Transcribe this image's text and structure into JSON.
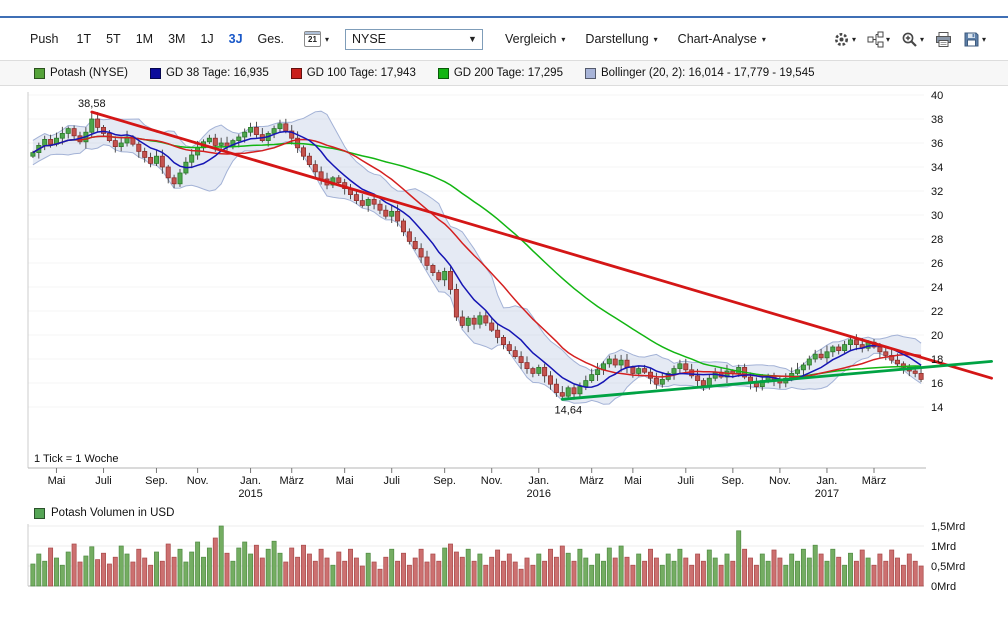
{
  "toolbar": {
    "push_label": "Push",
    "range_buttons": [
      {
        "label": "1T",
        "selected": false
      },
      {
        "label": "5T",
        "selected": false
      },
      {
        "label": "1M",
        "selected": false
      },
      {
        "label": "3M",
        "selected": false
      },
      {
        "label": "1J",
        "selected": false
      },
      {
        "label": "3J",
        "selected": true
      },
      {
        "label": "Ges.",
        "selected": false
      }
    ],
    "calendar_day": "21",
    "exchange": {
      "value": "NYSE"
    },
    "menus": [
      {
        "label": "Vergleich"
      },
      {
        "label": "Darstellung"
      },
      {
        "label": "Chart-Analyse"
      }
    ],
    "icons": [
      {
        "name": "settings-gear-icon",
        "dropdown": true
      },
      {
        "name": "indicator-tools-icon",
        "dropdown": true
      },
      {
        "name": "zoom-in-icon",
        "dropdown": true
      },
      {
        "name": "print-icon",
        "dropdown": false
      },
      {
        "name": "save-icon",
        "dropdown": true
      }
    ],
    "accent_color": "#1857c8"
  },
  "legend": {
    "items": [
      {
        "label": "Potash (NYSE)",
        "color": "#55a33a"
      },
      {
        "label": "GD 38 Tage: 16,935",
        "color": "#0b0b9b"
      },
      {
        "label": "GD 100 Tage: 17,943",
        "color": "#c8201c"
      },
      {
        "label": "GD 200 Tage: 17,295",
        "color": "#12b512"
      },
      {
        "label": "Bollinger (20, 2): 16,014 - 17,779 - 19,545",
        "color": "#a8b4d8"
      }
    ]
  },
  "chart_data": {
    "type": "candlestick",
    "instrument": "Potash (NYSE)",
    "tick_note": "1 Tick = 1 Woche",
    "price_axis": {
      "min": 14,
      "max": 40,
      "step": 2
    },
    "x_ticks": [
      {
        "label": "Mai",
        "week": 4
      },
      {
        "label": "Juli",
        "week": 12
      },
      {
        "label": "Sep.",
        "week": 21
      },
      {
        "label": "Nov.",
        "week": 28
      },
      {
        "label": "Jan.",
        "week": 37,
        "year": "2015"
      },
      {
        "label": "März",
        "week": 44
      },
      {
        "label": "Mai",
        "week": 53
      },
      {
        "label": "Juli",
        "week": 61
      },
      {
        "label": "Sep.",
        "week": 70
      },
      {
        "label": "Nov.",
        "week": 78
      },
      {
        "label": "Jan.",
        "week": 86,
        "year": "2016"
      },
      {
        "label": "März",
        "week": 95
      },
      {
        "label": "Mai",
        "week": 102
      },
      {
        "label": "Juli",
        "week": 111
      },
      {
        "label": "Sep.",
        "week": 119
      },
      {
        "label": "Nov.",
        "week": 127
      },
      {
        "label": "Jan.",
        "week": 135,
        "year": "2017"
      },
      {
        "label": "März",
        "week": 143
      }
    ],
    "closes": [
      35.2,
      35.8,
      36.3,
      35.9,
      36.4,
      36.8,
      37.2,
      36.6,
      36.1,
      36.9,
      38.0,
      37.3,
      36.8,
      36.2,
      35.7,
      36.0,
      36.5,
      35.9,
      35.3,
      34.8,
      34.3,
      34.9,
      34.0,
      33.1,
      32.6,
      33.5,
      34.4,
      35.0,
      35.6,
      36.1,
      36.4,
      35.8,
      36.0,
      35.7,
      36.2,
      36.5,
      36.9,
      37.3,
      36.7,
      36.2,
      36.8,
      37.2,
      37.6,
      37.0,
      36.4,
      35.6,
      34.9,
      34.2,
      33.6,
      33.0,
      32.5,
      33.1,
      32.7,
      32.2,
      31.7,
      31.2,
      30.8,
      31.3,
      30.9,
      30.4,
      29.9,
      30.3,
      29.5,
      28.6,
      27.8,
      27.2,
      26.5,
      25.8,
      25.2,
      24.6,
      25.3,
      23.8,
      21.5,
      20.8,
      21.4,
      20.9,
      21.6,
      21.0,
      20.4,
      19.8,
      19.2,
      18.7,
      18.2,
      17.7,
      17.2,
      16.8,
      17.3,
      16.6,
      15.9,
      15.2,
      14.9,
      15.6,
      15.1,
      15.7,
      16.2,
      16.7,
      17.1,
      17.6,
      18.0,
      17.5,
      17.9,
      17.3,
      16.8,
      17.2,
      16.9,
      16.4,
      15.9,
      16.3,
      16.8,
      17.2,
      17.6,
      17.1,
      16.6,
      16.2,
      15.8,
      16.4,
      16.9,
      16.5,
      17.0,
      16.8,
      17.3,
      16.5,
      16.0,
      15.7,
      16.2,
      16.6,
      16.3,
      16.0,
      16.4,
      16.8,
      17.1,
      17.5,
      18.0,
      18.4,
      18.1,
      18.6,
      19.0,
      18.7,
      19.2,
      19.6,
      19.2,
      18.9,
      19.4,
      19.0,
      18.6,
      18.3,
      17.9,
      17.6,
      17.3,
      17.0,
      16.8,
      16.3
    ],
    "volumes": [
      0.55,
      0.8,
      0.62,
      0.95,
      0.7,
      0.52,
      0.85,
      1.05,
      0.6,
      0.75,
      0.98,
      0.66,
      0.82,
      0.55,
      0.72,
      1.0,
      0.8,
      0.6,
      0.92,
      0.7,
      0.52,
      0.85,
      0.62,
      1.05,
      0.72,
      0.92,
      0.6,
      0.85,
      1.1,
      0.72,
      0.95,
      1.2,
      1.5,
      0.82,
      0.62,
      0.95,
      1.1,
      0.8,
      1.02,
      0.7,
      0.92,
      1.12,
      0.82,
      0.6,
      0.95,
      0.72,
      1.02,
      0.8,
      0.62,
      0.92,
      0.7,
      0.52,
      0.85,
      0.62,
      0.92,
      0.7,
      0.5,
      0.82,
      0.6,
      0.42,
      0.72,
      0.92,
      0.62,
      0.82,
      0.52,
      0.7,
      0.92,
      0.6,
      0.8,
      0.62,
      0.95,
      1.05,
      0.85,
      0.72,
      0.92,
      0.62,
      0.8,
      0.52,
      0.72,
      0.9,
      0.62,
      0.8,
      0.6,
      0.42,
      0.7,
      0.52,
      0.8,
      0.62,
      0.92,
      0.72,
      1.0,
      0.82,
      0.62,
      0.92,
      0.7,
      0.52,
      0.8,
      0.62,
      0.95,
      0.7,
      1.0,
      0.72,
      0.52,
      0.8,
      0.62,
      0.92,
      0.7,
      0.52,
      0.8,
      0.62,
      0.92,
      0.7,
      0.52,
      0.8,
      0.62,
      0.9,
      0.7,
      0.52,
      0.8,
      0.62,
      1.38,
      0.92,
      0.7,
      0.52,
      0.8,
      0.62,
      0.9,
      0.7,
      0.52,
      0.8,
      0.62,
      0.92,
      0.7,
      1.02,
      0.8,
      0.62,
      0.92,
      0.72,
      0.52,
      0.82,
      0.62,
      0.9,
      0.7,
      0.52,
      0.8,
      0.62,
      0.9,
      0.7,
      0.52,
      0.8,
      0.62,
      0.5
    ],
    "extremes": {
      "high": {
        "week": 10,
        "value": 38.58,
        "label": "38,58"
      },
      "low": {
        "week": 90,
        "value": 14.64,
        "label": "14,64"
      }
    },
    "trendlines": [
      {
        "name": "resistance",
        "color": "#d41616",
        "from": {
          "week": 10,
          "price": 38.58
        },
        "to": {
          "week": 163,
          "price": 16.4
        }
      },
      {
        "name": "support",
        "color": "#00a344",
        "from": {
          "week": 90,
          "price": 14.64
        },
        "to": {
          "week": 163,
          "price": 17.8
        }
      }
    ],
    "overlays": {
      "gd38": {
        "window": 8,
        "color": "#1515b4"
      },
      "gd100": {
        "window": 20,
        "color": "#d42020"
      },
      "gd200": {
        "window": 43,
        "color": "#12b512"
      },
      "bollinger": {
        "window": 9,
        "mult": 2,
        "fill": "rgba(173,189,220,0.32)",
        "edge": "#a3b2d6"
      }
    },
    "candle_colors": {
      "up_fill": "#4ca64c",
      "up_stroke": "#2a7a2a",
      "down_fill": "#c4524e",
      "down_stroke": "#8f2f2c"
    },
    "volume_colors": {
      "up_fill": "#74ad62",
      "up_stroke": "#4f8a42",
      "down_fill": "#cc7070",
      "down_stroke": "#a84848"
    },
    "volume_axis": {
      "labels": [
        {
          "value": 0,
          "label": "0Mrd"
        },
        {
          "value": 0.5,
          "label": "0,5Mrd"
        },
        {
          "value": 1,
          "label": "1Mrd"
        },
        {
          "value": 1.5,
          "label": "1,5Mrd"
        }
      ]
    },
    "volume_legend": "Potash Volumen in USD",
    "volume_legend_swatch": "#56a556"
  }
}
